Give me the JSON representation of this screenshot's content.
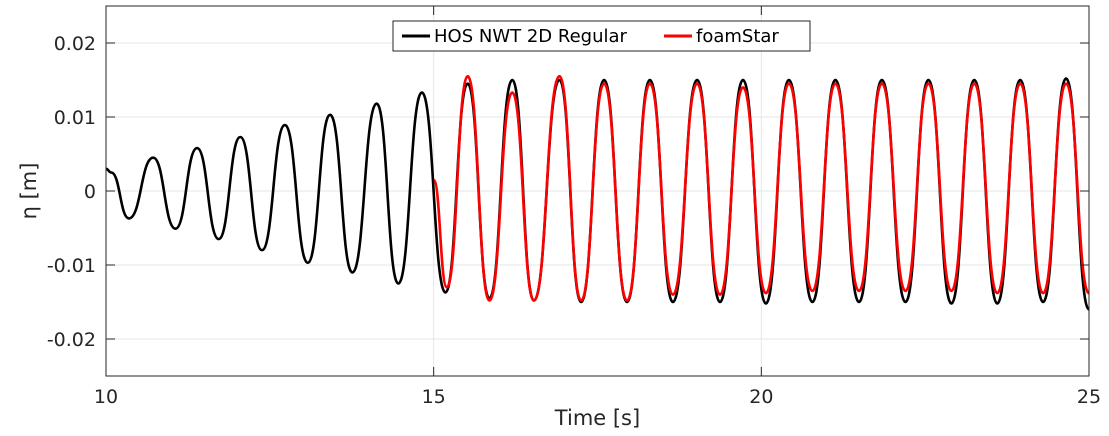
{
  "chart_data": {
    "type": "line",
    "title": "",
    "xlabel": "Time [s]",
    "ylabel": "η [m]",
    "xlim": [
      10,
      25
    ],
    "ylim": [
      -0.025,
      0.025
    ],
    "xticks": [
      10,
      15,
      20,
      25
    ],
    "xtick_labels": [
      "10",
      "15",
      "20",
      "25"
    ],
    "yticks": [
      0.02,
      0.01,
      0,
      -0.01,
      -0.02
    ],
    "ytick_labels": [
      "0.02",
      "0.01",
      "0",
      "-0.01",
      "-0.02"
    ],
    "grid": true,
    "legend_position": "top-center",
    "series": [
      {
        "name": "HOS NWT 2D Regular",
        "color": "#000000",
        "x": [
          10.0,
          10.08,
          10.35,
          10.72,
          11.06,
          11.39,
          11.72,
          12.05,
          12.38,
          12.73,
          13.08,
          13.42,
          13.76,
          14.13,
          14.46,
          14.82,
          15.18,
          15.52,
          15.85,
          16.2,
          16.53,
          16.92,
          17.25,
          17.6,
          17.95,
          18.3,
          18.65,
          19.02,
          19.37,
          19.72,
          20.07,
          20.42,
          20.78,
          21.13,
          21.49,
          21.84,
          22.2,
          22.55,
          22.9,
          23.25,
          23.6,
          23.95,
          24.3,
          24.65,
          25.0
        ],
        "y": [
          0.003,
          0.0025,
          -0.0037,
          0.0045,
          -0.0051,
          0.0058,
          -0.0065,
          0.0073,
          -0.008,
          0.0089,
          -0.0097,
          0.0103,
          -0.011,
          0.0118,
          -0.0125,
          0.0133,
          -0.0137,
          0.0145,
          -0.0145,
          0.015,
          -0.0148,
          0.015,
          -0.015,
          0.015,
          -0.015,
          0.015,
          -0.015,
          0.015,
          -0.015,
          0.015,
          -0.0152,
          0.015,
          -0.015,
          0.015,
          -0.015,
          0.015,
          -0.015,
          0.015,
          -0.0152,
          0.015,
          -0.0152,
          0.015,
          -0.015,
          0.0152,
          -0.016
        ]
      },
      {
        "name": "foamStar",
        "color": "#ff0000",
        "x": [
          15.0,
          15.2,
          15.52,
          15.85,
          16.2,
          16.53,
          16.92,
          17.25,
          17.6,
          17.95,
          18.3,
          18.65,
          19.02,
          19.37,
          19.72,
          20.07,
          20.42,
          20.78,
          21.13,
          21.49,
          21.84,
          22.2,
          22.55,
          22.9,
          23.25,
          23.6,
          23.95,
          24.3,
          24.65,
          25.0
        ],
        "y": [
          0.0015,
          -0.013,
          0.0155,
          -0.0148,
          0.0133,
          -0.0148,
          0.0155,
          -0.0148,
          0.0145,
          -0.0148,
          0.0145,
          -0.014,
          0.0145,
          -0.014,
          0.014,
          -0.0138,
          0.0145,
          -0.0135,
          0.0145,
          -0.0135,
          0.0145,
          -0.0135,
          0.0145,
          -0.0135,
          0.0145,
          -0.0138,
          0.0145,
          -0.0138,
          0.0145,
          -0.0138
        ]
      }
    ]
  }
}
